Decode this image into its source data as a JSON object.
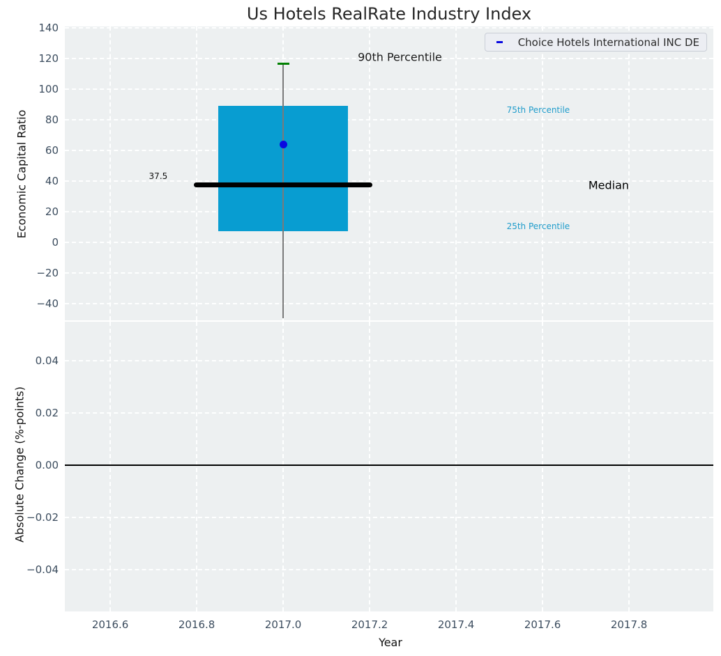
{
  "title": "Us Hotels RealRate Industry Index",
  "legend": {
    "label": "Choice Hotels International INC DE",
    "line_color": "#0a0ae0"
  },
  "xaxis": {
    "label": "Year",
    "tick_labels": [
      "2016.6",
      "2016.8",
      "2017.0",
      "2017.2",
      "2017.4",
      "2017.6",
      "2017.8"
    ],
    "tick_values": [
      2016.6,
      2016.8,
      2017.0,
      2017.2,
      2017.4,
      2017.6,
      2017.8
    ],
    "range": [
      2016.495,
      2017.995
    ]
  },
  "top_axis": {
    "ylabel": "Economic Capital Ratio",
    "tick_labels": [
      "140",
      "120",
      "100",
      "80",
      "60",
      "40",
      "20",
      "0",
      "−20",
      "−40"
    ],
    "tick_values": [
      140,
      120,
      100,
      80,
      60,
      40,
      20,
      0,
      -20,
      -40
    ],
    "range": [
      -50.9,
      140.9
    ]
  },
  "bottom_axis": {
    "ylabel": "Absolute Change (%-points)",
    "tick_labels": [
      "0.04",
      "0.02",
      "0.00",
      "−0.02",
      "−0.04"
    ],
    "tick_values": [
      0.04,
      0.02,
      0.0,
      -0.02,
      -0.04
    ],
    "range": [
      -0.056,
      0.0549
    ],
    "zero_line_value": 0.0
  },
  "chart_data": {
    "type": "box",
    "title": "Us Hotels RealRate Industry Index",
    "xlabel": "Year",
    "series_name": "Choice Hotels International INC DE",
    "grid": true,
    "top_panel": {
      "ylabel": "Economic Capital Ratio",
      "ylim": [
        -50.9,
        140.9
      ],
      "box": {
        "x": 2017.0,
        "box_width": 0.3,
        "p25": 7.5,
        "median": 37.5,
        "p75": 89,
        "p90": 116.5,
        "whisker_low": -49.5,
        "median_line_x1": 2016.794,
        "median_line_x2": 2017.207
      },
      "company_point": {
        "x": 2017.0,
        "value": 64
      },
      "annotations": [
        {
          "text": "90th Percentile",
          "x": 2017.27,
          "y": 120.9,
          "color": "#1a1a1a",
          "size": 16
        },
        {
          "text": "75th Percentile",
          "x": 2017.59,
          "y": 86.4,
          "color": "#1f9ccb",
          "size": 12
        },
        {
          "text": "Median",
          "x": 2017.753,
          "y": 37.3,
          "color": "#000000",
          "size": 16
        },
        {
          "text": "25th Percentile",
          "x": 2017.59,
          "y": 10.5,
          "color": "#1f9ccb",
          "size": 12
        },
        {
          "text": "37.5",
          "x": 2016.711,
          "y": 43.2,
          "color": "#111111",
          "size": 12
        }
      ]
    },
    "bottom_panel": {
      "ylabel": "Absolute Change (%-points)",
      "ylim": [
        -0.056,
        0.0549
      ],
      "zero_line_value": 0.0,
      "series_values": []
    },
    "colors": {
      "box_fill": "#089dd1",
      "median": "#000000",
      "whisker": "#7a7a7a",
      "p90_cap": "#008000",
      "company_point": "#0a0ae0",
      "zero_line": "#000000",
      "axes_background": "#edf0f1",
      "grid": "#ffffff",
      "tick_label": "#3b4c5e"
    }
  }
}
